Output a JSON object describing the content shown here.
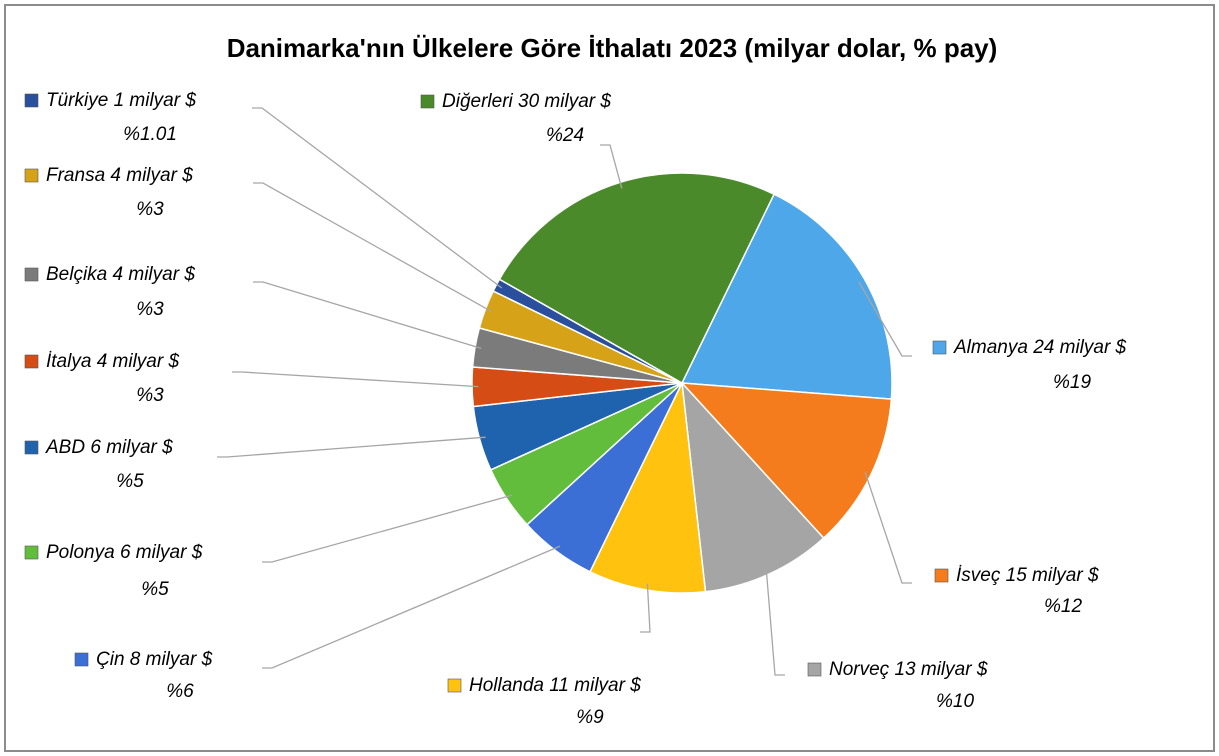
{
  "chart_data": {
    "type": "pie",
    "title": "Danimarka'nın Ülkelere Göre İthalatı 2023 (milyar dolar, % pay)",
    "categories": [
      "Almanya 24 milyar $",
      "İsveç 15 milyar $",
      "Norveç 13 milyar $",
      "Hollanda 11 milyar $",
      "Çin 8 milyar $",
      "Polonya 6 milyar $",
      "ABD 6 milyar $",
      "İtalya 4 milyar $",
      "Belçika 4 milyar $",
      "Fransa 4 milyar $",
      "Türkiye 1 milyar $",
      "Diğerleri 30 milyar $"
    ],
    "values": [
      19,
      12,
      10,
      9,
      6,
      5,
      5,
      3,
      3,
      3,
      1.01,
      24
    ],
    "value_labels": [
      "%19",
      "%12",
      "%10",
      "%9",
      "%6",
      "%5",
      "%5",
      "%3",
      "%3",
      "%3",
      "%1.01",
      "%24"
    ],
    "colors": [
      "#4ea7e8",
      "#f47c1c",
      "#a5a5a5",
      "#ffc20e",
      "#3b6fd6",
      "#62bd3c",
      "#1f62ad",
      "#d54c14",
      "#7b7b7b",
      "#d6a318",
      "#2a4f9c",
      "#4b8a2b"
    ]
  }
}
